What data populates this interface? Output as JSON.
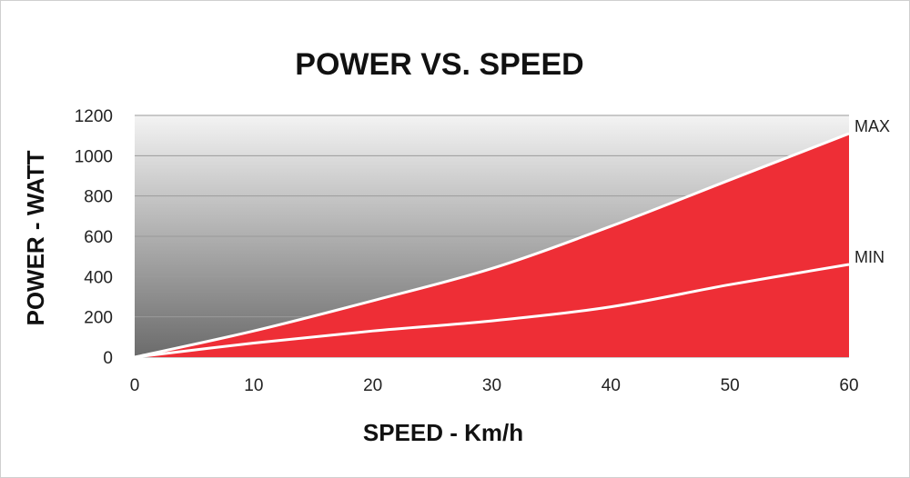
{
  "chart_data": {
    "type": "area",
    "title": "POWER VS. SPEED",
    "xlabel": "SPEED - Km/h",
    "ylabel": "POWER - WATT",
    "xlim": [
      0,
      60
    ],
    "ylim": [
      0,
      1200
    ],
    "x_ticks": [
      0,
      10,
      20,
      30,
      40,
      50,
      60
    ],
    "y_ticks": [
      0,
      200,
      400,
      600,
      800,
      1000,
      1200
    ],
    "grid": true,
    "colors": {
      "fill": "#ee2e36",
      "line": "#ffffff",
      "background_top": "#f3f3f3",
      "background_bottom": "#6b6b6b",
      "grid": "#9a9a9a"
    },
    "series": [
      {
        "name": "MAX",
        "x": [
          0,
          10,
          20,
          30,
          40,
          50,
          60
        ],
        "y": [
          0,
          130,
          280,
          440,
          650,
          880,
          1110
        ]
      },
      {
        "name": "MIN",
        "x": [
          0,
          10,
          20,
          30,
          40,
          50,
          60
        ],
        "y": [
          0,
          70,
          130,
          180,
          250,
          360,
          460
        ]
      }
    ]
  }
}
